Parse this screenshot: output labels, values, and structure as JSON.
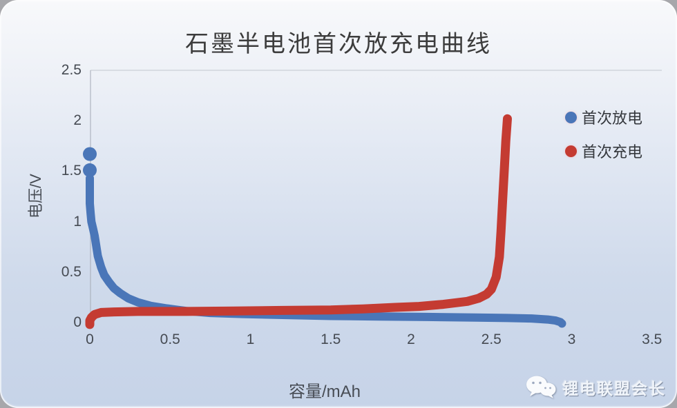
{
  "watermark": {
    "text": "锂电联盟会长",
    "icon": "wechat-icon"
  },
  "chart_data": {
    "type": "line",
    "title": "石墨半电池首次放充电曲线",
    "xlabel": "容量/mAh",
    "ylabel": "电压/V",
    "xlim": [
      0,
      3.5
    ],
    "ylim": [
      0,
      2.5
    ],
    "xtick_labels": [
      "0",
      "0.5",
      "1",
      "1.5",
      "2",
      "2.5",
      "3",
      "3.5"
    ],
    "xtick_values": [
      0,
      0.5,
      1,
      1.5,
      2,
      2.5,
      3,
      3.5
    ],
    "ytick_labels": [
      "0",
      "0.5",
      "1",
      "1.5",
      "2",
      "2.5"
    ],
    "ytick_values": [
      0,
      0.5,
      1,
      1.5,
      2,
      2.5
    ],
    "grid": false,
    "legend_position": "upper-right",
    "series": [
      {
        "name": "首次放电",
        "color": "#4a76b8",
        "isolated_points": [
          [
            0,
            1.67
          ],
          [
            0,
            1.51
          ]
        ],
        "points": [
          [
            0.0,
            1.43
          ],
          [
            0.0,
            1.3
          ],
          [
            0.0,
            1.18
          ],
          [
            0.005,
            1.08
          ],
          [
            0.01,
            1.0
          ],
          [
            0.02,
            0.93
          ],
          [
            0.03,
            0.86
          ],
          [
            0.04,
            0.76
          ],
          [
            0.05,
            0.66
          ],
          [
            0.07,
            0.55
          ],
          [
            0.09,
            0.47
          ],
          [
            0.12,
            0.4
          ],
          [
            0.15,
            0.34
          ],
          [
            0.19,
            0.29
          ],
          [
            0.24,
            0.24
          ],
          [
            0.3,
            0.2
          ],
          [
            0.38,
            0.165
          ],
          [
            0.48,
            0.14
          ],
          [
            0.6,
            0.115
          ],
          [
            0.75,
            0.095
          ],
          [
            0.95,
            0.085
          ],
          [
            1.2,
            0.075
          ],
          [
            1.5,
            0.065
          ],
          [
            1.8,
            0.06
          ],
          [
            2.1,
            0.055
          ],
          [
            2.4,
            0.05
          ],
          [
            2.6,
            0.045
          ],
          [
            2.75,
            0.04
          ],
          [
            2.85,
            0.03
          ],
          [
            2.9,
            0.02
          ],
          [
            2.93,
            0.005
          ],
          [
            2.94,
            -0.01
          ]
        ]
      },
      {
        "name": "首次充电",
        "color": "#c43b32",
        "isolated_points": [],
        "points": [
          [
            0.0,
            -0.02
          ],
          [
            0.0,
            0.02
          ],
          [
            0.01,
            0.05
          ],
          [
            0.03,
            0.08
          ],
          [
            0.07,
            0.1
          ],
          [
            0.15,
            0.105
          ],
          [
            0.3,
            0.11
          ],
          [
            0.6,
            0.11
          ],
          [
            0.9,
            0.115
          ],
          [
            1.2,
            0.12
          ],
          [
            1.5,
            0.125
          ],
          [
            1.7,
            0.135
          ],
          [
            1.9,
            0.15
          ],
          [
            2.05,
            0.16
          ],
          [
            2.2,
            0.18
          ],
          [
            2.35,
            0.21
          ],
          [
            2.42,
            0.24
          ],
          [
            2.47,
            0.28
          ],
          [
            2.5,
            0.33
          ],
          [
            2.53,
            0.45
          ],
          [
            2.55,
            0.65
          ],
          [
            2.56,
            0.9
          ],
          [
            2.57,
            1.2
          ],
          [
            2.58,
            1.5
          ],
          [
            2.59,
            1.8
          ],
          [
            2.6,
            2.02
          ]
        ]
      }
    ]
  }
}
